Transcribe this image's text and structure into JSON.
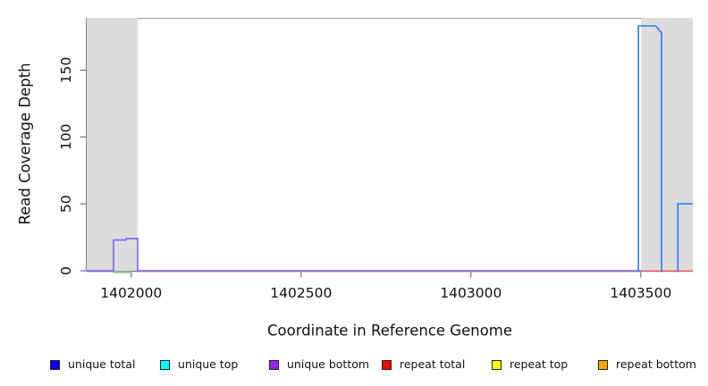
{
  "chart_data": {
    "type": "line",
    "title": "",
    "xlabel": "Coordinate in Reference Genome",
    "ylabel": "Read Coverage Depth",
    "xlim": [
      1401869,
      1403653
    ],
    "ylim": [
      0,
      189
    ],
    "x_ticks": [
      1402000,
      1402500,
      1403000,
      1403500
    ],
    "y_ticks": [
      0,
      50,
      100,
      150
    ],
    "grid": false,
    "legend_position": "bottom-horizontal",
    "region_color": "#dcdcdc",
    "highlight_regions": [
      {
        "name": "left masked region",
        "x0": 1401869,
        "x1": 1402019,
        "color": "#dcdcdc"
      },
      {
        "name": "right masked region",
        "x0": 1403501,
        "x1": 1403653,
        "color": "#dcdcdc"
      }
    ],
    "series": [
      {
        "name": "repeat-baseline-fringe",
        "color": "rgba(238,160,200,0.75)",
        "width": 1.2,
        "dy": 1.4,
        "points": [
          [
            1401869,
            0
          ],
          [
            1403501,
            0
          ]
        ]
      },
      {
        "name": "green-overlap-at-zero",
        "color": "#8fcb8f",
        "width": 2.4,
        "dy": 1.6,
        "points": [
          [
            1401945,
            0
          ],
          [
            1402000,
            0
          ]
        ]
      },
      {
        "name": "repeat-total-baseline",
        "color": "#e8585c",
        "width": 1.6,
        "dy": 0.4,
        "points": [
          [
            1403501,
            0
          ],
          [
            1403653,
            0
          ]
        ]
      },
      {
        "name": "unique-bottom-peak",
        "color": "#7b63ee",
        "width": 1.6,
        "dy": 0,
        "points": [
          [
            1401869,
            0
          ],
          [
            1401948,
            0
          ],
          [
            1401948,
            23
          ],
          [
            1401985,
            23
          ],
          [
            1401985,
            24
          ],
          [
            1402019,
            24
          ],
          [
            1402019,
            0
          ],
          [
            1403501,
            0
          ]
        ]
      },
      {
        "name": "unique-top-tall-peak",
        "color": "#2a7df2",
        "width": 1.6,
        "dy": 0,
        "points": [
          [
            1403493,
            0
          ],
          [
            1403493,
            183
          ],
          [
            1403543,
            183
          ],
          [
            1403549,
            181.5
          ],
          [
            1403554,
            179.5
          ],
          [
            1403561,
            178
          ],
          [
            1403561,
            -1
          ]
        ]
      },
      {
        "name": "unique-top-right-step",
        "color": "#2a7df2",
        "width": 1.6,
        "dy": 0,
        "points": [
          [
            1403609,
            -1
          ],
          [
            1403609,
            50
          ],
          [
            1403653,
            50
          ]
        ]
      }
    ],
    "legend": {
      "items": [
        {
          "label": "unique total",
          "color": "#0000ff"
        },
        {
          "label": "unique top",
          "color": "#00ffff"
        },
        {
          "label": "unique bottom",
          "color": "#a020f0"
        },
        {
          "label": "repeat total",
          "color": "#ff0000"
        },
        {
          "label": "repeat top",
          "color": "#ffff00"
        },
        {
          "label": "repeat bottom",
          "color": "#ffa500"
        }
      ]
    }
  }
}
